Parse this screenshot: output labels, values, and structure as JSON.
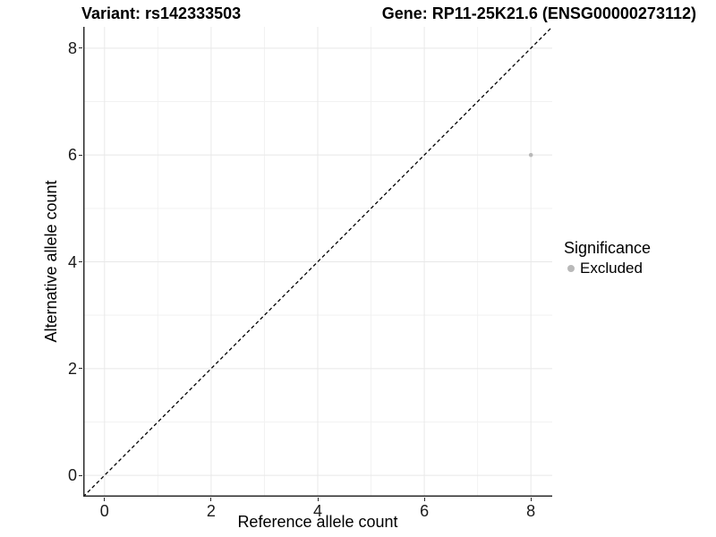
{
  "figure": {
    "title_left": "Variant: rs142333503",
    "title_right": "Gene: RP11-25K21.6 (ENSG00000273112)"
  },
  "chart_data": {
    "type": "scatter",
    "title": "Variant: rs142333503 — Gene: RP11-25K21.6 (ENSG00000273112)",
    "xlabel": "Reference allele count",
    "ylabel": "Alternative allele count",
    "xlim": [
      -0.4,
      8.4
    ],
    "ylim": [
      -0.4,
      8.4
    ],
    "xticks": [
      0,
      2,
      4,
      6,
      8
    ],
    "yticks": [
      0,
      2,
      4,
      6,
      8
    ],
    "minor_xticks": [
      1,
      3,
      5,
      7
    ],
    "minor_yticks": [
      1,
      3,
      5,
      7
    ],
    "grid": "major-and-minor",
    "points": [
      {
        "x": 8,
        "y": 6,
        "series": "Excluded"
      }
    ],
    "identity_line": {
      "slope": 1,
      "intercept": 0,
      "style": "dashed"
    },
    "legend": {
      "title": "Significance",
      "position": "right",
      "entries": [
        {
          "label": "Excluded",
          "color": "#b9b9b9"
        }
      ]
    },
    "colors": {
      "point": "#b9b9b9",
      "grid_major": "#e8e8e8",
      "grid_minor": "#f2f2f2",
      "axis_line": "#2b2b2b",
      "identity_line": "#000000",
      "text": "#000000"
    }
  }
}
